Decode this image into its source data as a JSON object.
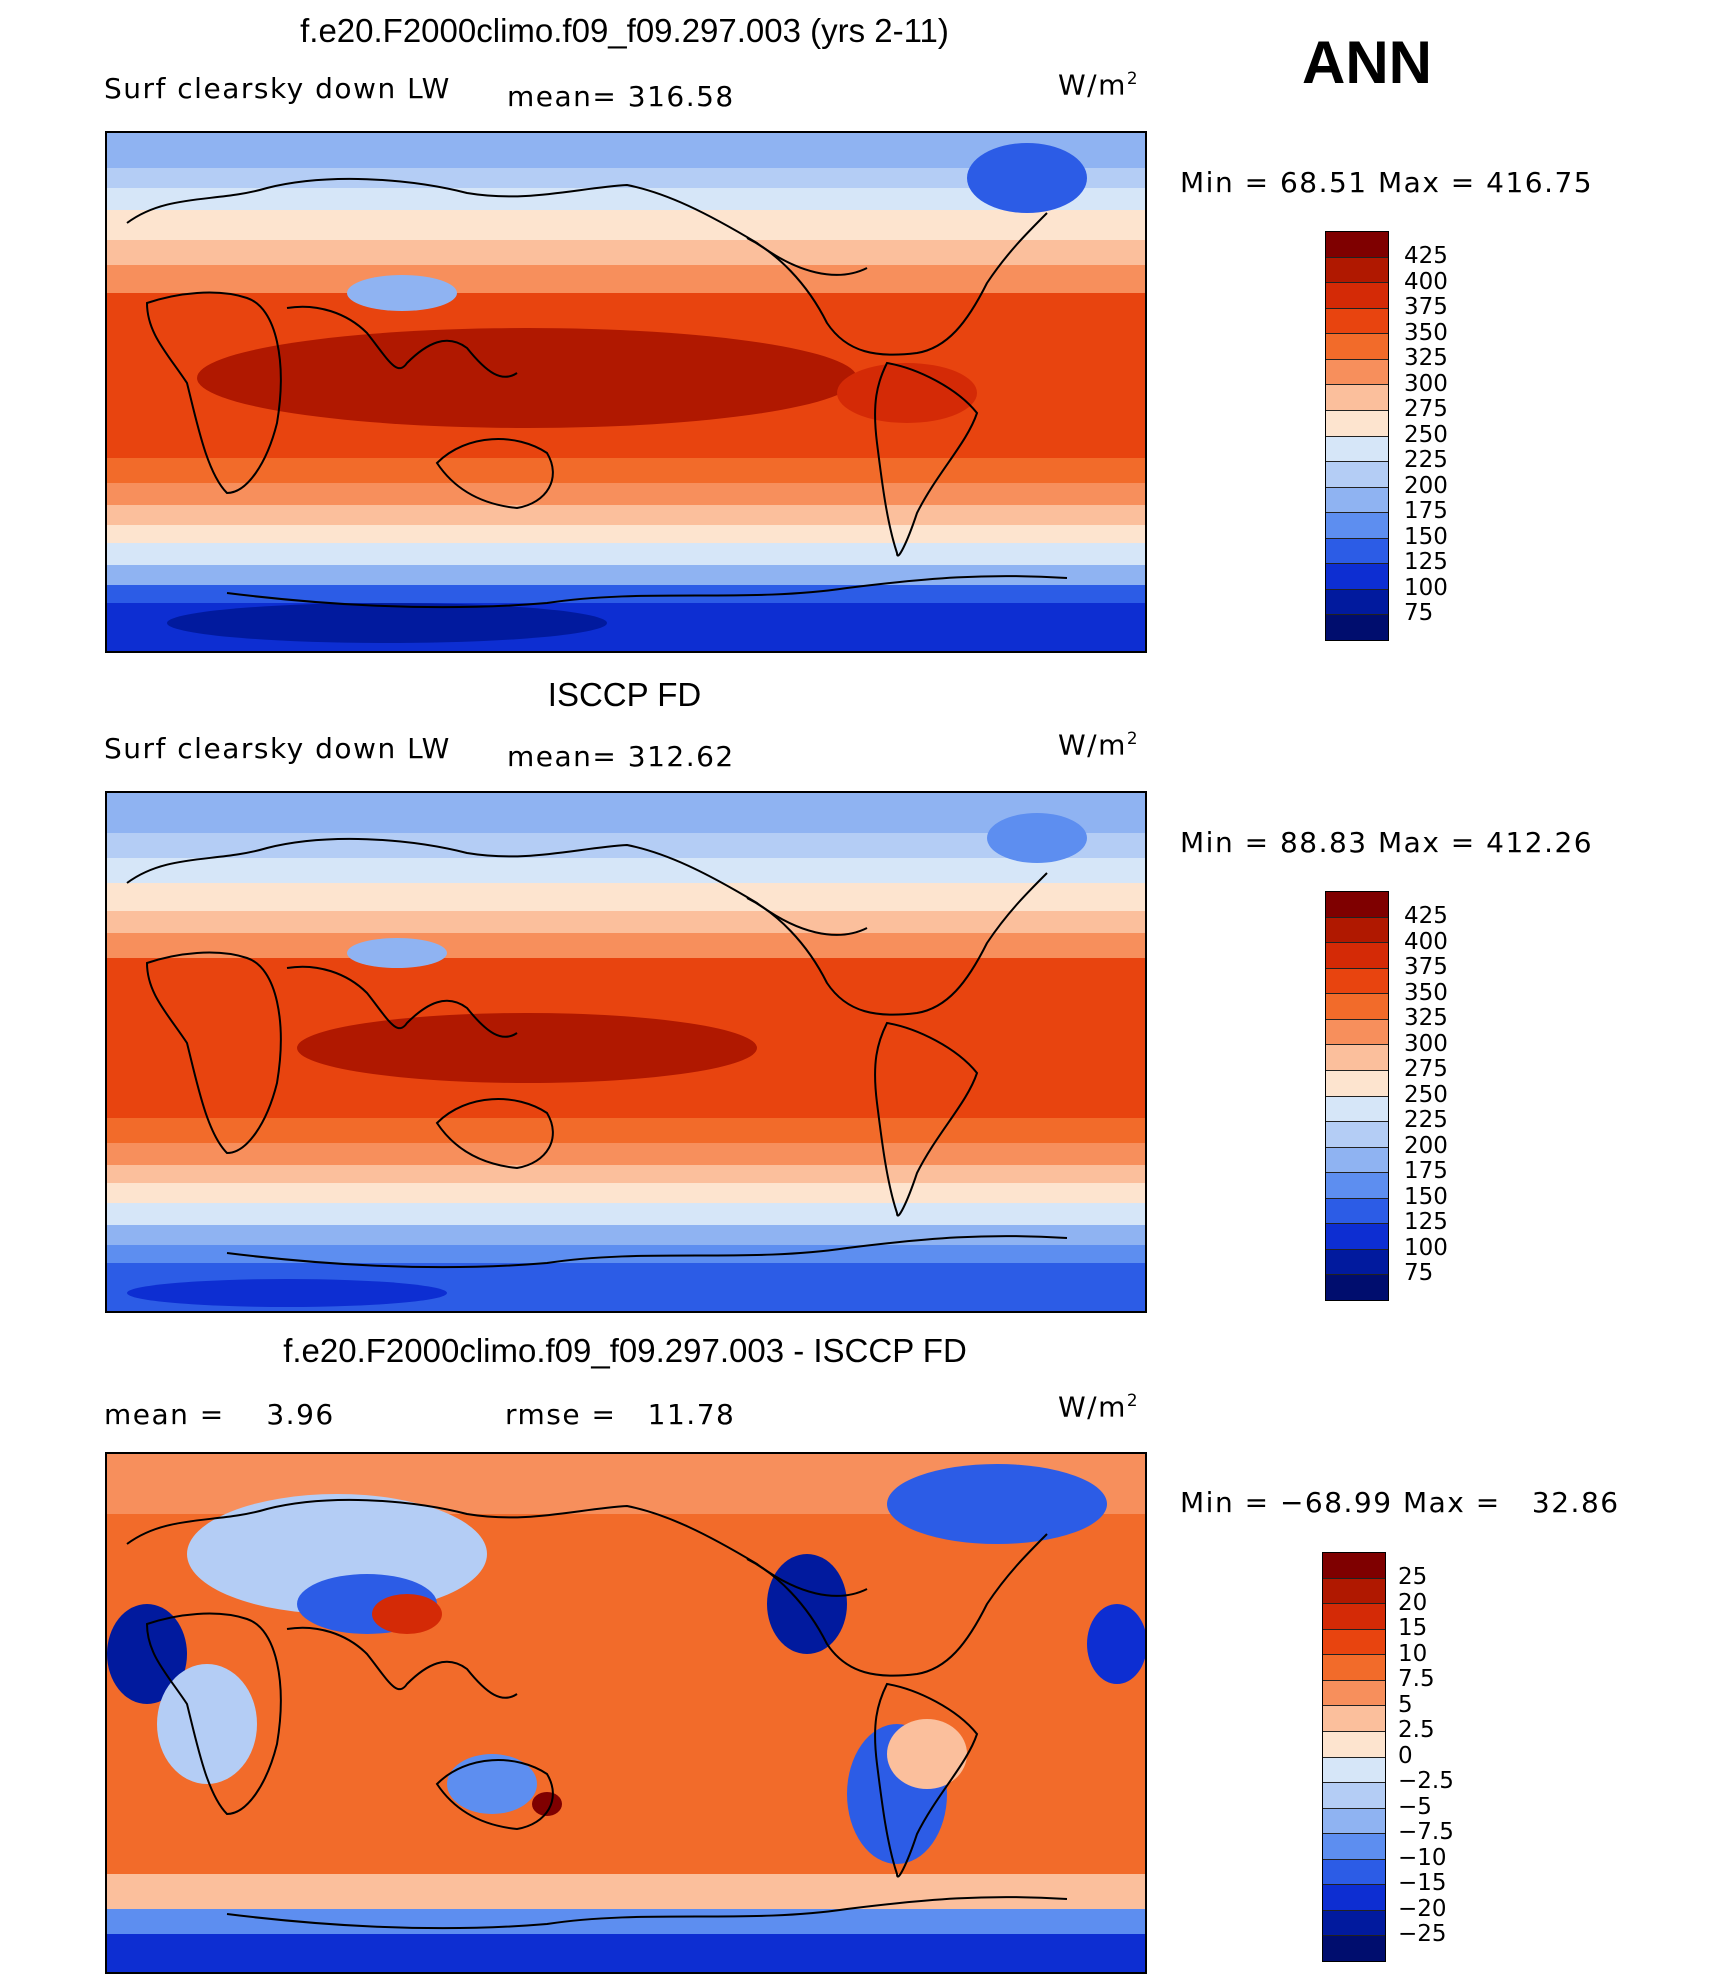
{
  "season": "ANN",
  "units_main": "W/m",
  "units_sup": "2",
  "panels": [
    {
      "title": "f.e20.F2000climo.f09_f09.297.003 (yrs 2-11)",
      "left_label": "Surf clearsky down LW",
      "mid_label": "mean= 316.58",
      "minmax": "Min =   68.51 Max = 416.75",
      "colorbar_labels": [
        "425",
        "400",
        "375",
        "350",
        "325",
        "300",
        "275",
        "250",
        "225",
        "200",
        "175",
        "150",
        "125",
        "100",
        "75"
      ]
    },
    {
      "title": "ISCCP FD",
      "left_label": "Surf clearsky down LW",
      "mid_label": "mean= 312.62",
      "minmax": "Min =   88.83 Max = 412.26",
      "colorbar_labels": [
        "425",
        "400",
        "375",
        "350",
        "325",
        "300",
        "275",
        "250",
        "225",
        "200",
        "175",
        "150",
        "125",
        "100",
        "75"
      ]
    },
    {
      "title": "f.e20.F2000climo.f09_f09.297.003 - ISCCP FD",
      "left_label": "mean =    3.96",
      "mid_label": "rmse =   11.78",
      "minmax": "Min = −68.99 Max =   32.86",
      "colorbar_labels": [
        "25",
        "20",
        "15",
        "10",
        "7.5",
        "5",
        "2.5",
        "0",
        "−2.5",
        "−5",
        "−7.5",
        "−10",
        "−15",
        "−20",
        "−25"
      ]
    }
  ],
  "colorbar_colors": [
    "#7f0000",
    "#b01800",
    "#d42a06",
    "#e8440f",
    "#f26b2a",
    "#f78f5c",
    "#fbbf9c",
    "#fde4cf",
    "#d6e6f8",
    "#b4cdf5",
    "#8fb3f2",
    "#5d8ef0",
    "#2c5ce6",
    "#0d2ed2",
    "#011a9e",
    "#000d6e"
  ]
}
